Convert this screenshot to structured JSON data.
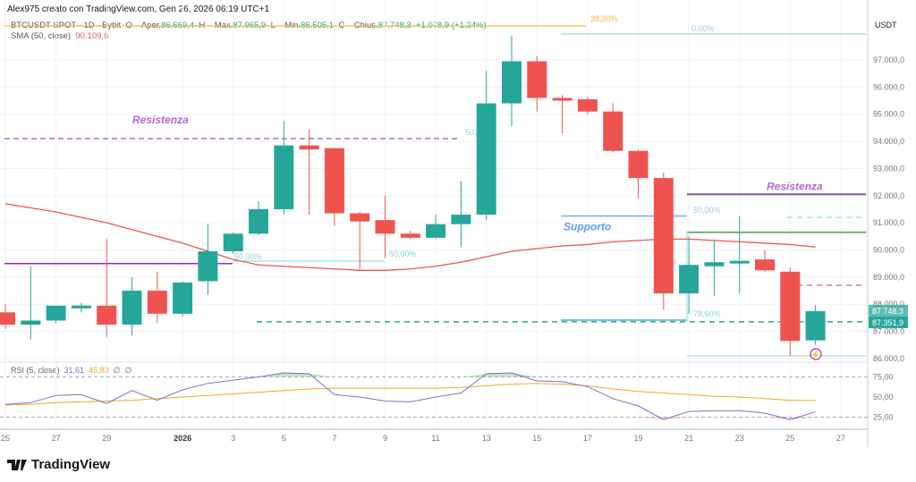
{
  "header": {
    "credit": "Alex975 creato con TradingView.com, Gen 26, 2026 06:19 UTC+1",
    "symbol": "BTCUSDT SPOT · 1D · Bybit",
    "o_label": "O – Aper.",
    "o_value": "86.669,4",
    "h_label": "H – Max.",
    "h_value": "87.965,9",
    "l_label": "L – Min.",
    "l_value": "86.505,1",
    "c_label": "C – Chius.",
    "c_value": "87.748,3",
    "change": "+1.078,9 (+1,24%)",
    "sma_label": "SMA (50, close)",
    "sma_value": "90.109,6"
  },
  "rsi_legend": {
    "label": "RSI (5, close)",
    "rsi": "31,61",
    "ma": "45,83",
    "s1": "∅",
    "s2": "∅"
  },
  "axis": {
    "currency": "USDT",
    "price_ticks": [
      "97.000,0",
      "96.000,0",
      "95.000,0",
      "94.000,0",
      "93.000,0",
      "92.000,0",
      "91.000,0",
      "90.000,0",
      "89.000,0",
      "88.000,0",
      "87.000,0",
      "86.000,0"
    ],
    "price_tick_values": [
      97000,
      96000,
      95000,
      94000,
      93000,
      92000,
      91000,
      90000,
      89000,
      88000,
      87000,
      86000
    ],
    "rsi_ticks": [
      "75,00",
      "50,00",
      "25,00"
    ],
    "rsi_tick_values": [
      75,
      50,
      25
    ],
    "date_ticks": [
      {
        "day": 0,
        "label": "25"
      },
      {
        "day": 2,
        "label": "27"
      },
      {
        "day": 4,
        "label": "29"
      },
      {
        "day": 7,
        "label": "2026"
      },
      {
        "day": 9,
        "label": "3"
      },
      {
        "day": 11,
        "label": "5"
      },
      {
        "day": 13,
        "label": "7"
      },
      {
        "day": 15,
        "label": "9"
      },
      {
        "day": 17,
        "label": "11"
      },
      {
        "day": 19,
        "label": "13"
      },
      {
        "day": 21,
        "label": "15"
      },
      {
        "day": 23,
        "label": "17"
      },
      {
        "day": 25,
        "label": "19"
      },
      {
        "day": 27,
        "label": "21"
      },
      {
        "day": 29,
        "label": "23"
      },
      {
        "day": 31,
        "label": "25"
      },
      {
        "day": 33,
        "label": "27"
      }
    ],
    "last_price": "87.748,3",
    "level_price": "87.351,9"
  },
  "colors": {
    "up": "#26a69a",
    "down": "#ef5350",
    "sma": "#ef5350",
    "rsi": "#7e6fc9",
    "rsi_ma": "#f5a623",
    "accent": "#26a69a"
  },
  "chart_data": {
    "type": "candlestick",
    "title": "BTCUSDT SPOT · 1D · Bybit",
    "ylabel": "USDT",
    "ylim": [
      85900,
      98200
    ],
    "candles": [
      {
        "d": "Dec 25",
        "o": 87700,
        "h": 88000,
        "l": 87100,
        "c": 87250
      },
      {
        "d": "Dec 26",
        "o": 87250,
        "h": 89400,
        "l": 86700,
        "c": 87400
      },
      {
        "d": "Dec 27",
        "o": 87400,
        "h": 87950,
        "l": 87300,
        "c": 87950
      },
      {
        "d": "Dec 28",
        "o": 87850,
        "h": 88050,
        "l": 87700,
        "c": 87950
      },
      {
        "d": "Dec 29",
        "o": 87950,
        "h": 90400,
        "l": 86800,
        "c": 87250
      },
      {
        "d": "Dec 30",
        "o": 87250,
        "h": 89000,
        "l": 86850,
        "c": 88500
      },
      {
        "d": "Dec 31",
        "o": 88500,
        "h": 89200,
        "l": 87300,
        "c": 87650
      },
      {
        "d": "Jan 1",
        "o": 87650,
        "h": 88850,
        "l": 87550,
        "c": 88800
      },
      {
        "d": "Jan 2",
        "o": 88850,
        "h": 90950,
        "l": 88350,
        "c": 89950
      },
      {
        "d": "Jan 3",
        "o": 89950,
        "h": 90650,
        "l": 89850,
        "c": 90600
      },
      {
        "d": "Jan 4",
        "o": 90600,
        "h": 91800,
        "l": 90550,
        "c": 91500
      },
      {
        "d": "Jan 5",
        "o": 91500,
        "h": 94750,
        "l": 91300,
        "c": 93850
      },
      {
        "d": "Jan 6",
        "o": 93850,
        "h": 94450,
        "l": 91300,
        "c": 93700
      },
      {
        "d": "Jan 7",
        "o": 93750,
        "h": 93750,
        "l": 90900,
        "c": 91350
      },
      {
        "d": "Jan 8",
        "o": 91350,
        "h": 91400,
        "l": 89300,
        "c": 91050
      },
      {
        "d": "Jan 9",
        "o": 91100,
        "h": 92000,
        "l": 89700,
        "c": 90600
      },
      {
        "d": "Jan 10",
        "o": 90600,
        "h": 90700,
        "l": 90400,
        "c": 90450
      },
      {
        "d": "Jan 11",
        "o": 90450,
        "h": 91300,
        "l": 90400,
        "c": 90950
      },
      {
        "d": "Jan 12",
        "o": 90950,
        "h": 92550,
        "l": 90100,
        "c": 91300
      },
      {
        "d": "Jan 13",
        "o": 91300,
        "h": 96600,
        "l": 91100,
        "c": 95400
      },
      {
        "d": "Jan 14",
        "o": 95400,
        "h": 97900,
        "l": 94550,
        "c": 96950
      },
      {
        "d": "Jan 15",
        "o": 96950,
        "h": 97150,
        "l": 95100,
        "c": 95600
      },
      {
        "d": "Jan 16",
        "o": 95600,
        "h": 95700,
        "l": 94300,
        "c": 95500
      },
      {
        "d": "Jan 17",
        "o": 95550,
        "h": 95650,
        "l": 95000,
        "c": 95100
      },
      {
        "d": "Jan 18",
        "o": 95100,
        "h": 95400,
        "l": 93600,
        "c": 93650
      },
      {
        "d": "Jan 19",
        "o": 93650,
        "h": 93700,
        "l": 91900,
        "c": 92650
      },
      {
        "d": "Jan 20",
        "o": 92650,
        "h": 92850,
        "l": 87800,
        "c": 88400
      },
      {
        "d": "Jan 21",
        "o": 88400,
        "h": 90500,
        "l": 87650,
        "c": 89450
      },
      {
        "d": "Jan 22",
        "o": 89400,
        "h": 90350,
        "l": 88300,
        "c": 89550
      },
      {
        "d": "Jan 23",
        "o": 89500,
        "h": 91250,
        "l": 88400,
        "c": 89600
      },
      {
        "d": "Jan 24",
        "o": 89650,
        "h": 90000,
        "l": 89200,
        "c": 89250
      },
      {
        "d": "Jan 25",
        "o": 89200,
        "h": 89350,
        "l": 86100,
        "c": 86650
      },
      {
        "d": "Jan 26",
        "o": 86669.4,
        "h": 87965.9,
        "l": 86505.1,
        "c": 87748.3
      }
    ],
    "sma": [
      91700,
      91550,
      91400,
      91200,
      91000,
      90750,
      90500,
      90250,
      89950,
      89650,
      89450,
      89400,
      89350,
      89300,
      89250,
      89250,
      89300,
      89400,
      89550,
      89750,
      89950,
      90050,
      90150,
      90200,
      90300,
      90350,
      90400,
      90400,
      90350,
      90300,
      90250,
      90200,
      90109.6
    ],
    "rsi": [
      41,
      43,
      52,
      53,
      42,
      58,
      46,
      59,
      67,
      71,
      75,
      80,
      79,
      53,
      50,
      45,
      44,
      50,
      55,
      79,
      80,
      70,
      69,
      63,
      48,
      39,
      22,
      32,
      33,
      33,
      30,
      22,
      31.61
    ],
    "rsi_ma": [
      40,
      41,
      43,
      44,
      45,
      46,
      48,
      50,
      52,
      54,
      56,
      58,
      60,
      61,
      61,
      61,
      61,
      61,
      62,
      64,
      66,
      67,
      66,
      64,
      60,
      57,
      55,
      53,
      51,
      50,
      48,
      46,
      45.83
    ]
  },
  "annotations": {
    "resistance1": {
      "label": "Resistenza",
      "price": 94100,
      "color": "#b467d4"
    },
    "resistance2": {
      "label": "Resistenza",
      "price": 92050,
      "color": "#7e57c2"
    },
    "support": {
      "label": "Supporto",
      "price": 91250,
      "color": "#5b9cf0"
    },
    "purple_level": {
      "price": 89500,
      "color": "#9c27b0"
    },
    "green_level": {
      "price": 90650,
      "color": "#66a866"
    },
    "cyan_dashed_level": {
      "price": 91200,
      "color": "#9adbe0"
    },
    "red_dashed_level": {
      "price": 88700,
      "color": "#e0708a"
    },
    "teal_dashed_level": {
      "price": 87351.9,
      "color": "#26a69a"
    },
    "low_level": {
      "price": 86100,
      "color": "#9adbe0"
    },
    "fib": [
      {
        "label": "38,20%",
        "color": "#f5b942"
      },
      {
        "label": "0,00%",
        "color": "#9ec8e8"
      },
      {
        "label": "50,00%",
        "color": "#9ec8e8"
      },
      {
        "label": "50,00%",
        "color": "#8ad1d6"
      },
      {
        "label": "50,00%",
        "color": "#8ad1d6"
      },
      {
        "label": "50,00%",
        "color": "#9ec8e8"
      },
      {
        "label": "78,60%",
        "color": "#8ad1d6"
      }
    ]
  },
  "brand": "TradingView"
}
